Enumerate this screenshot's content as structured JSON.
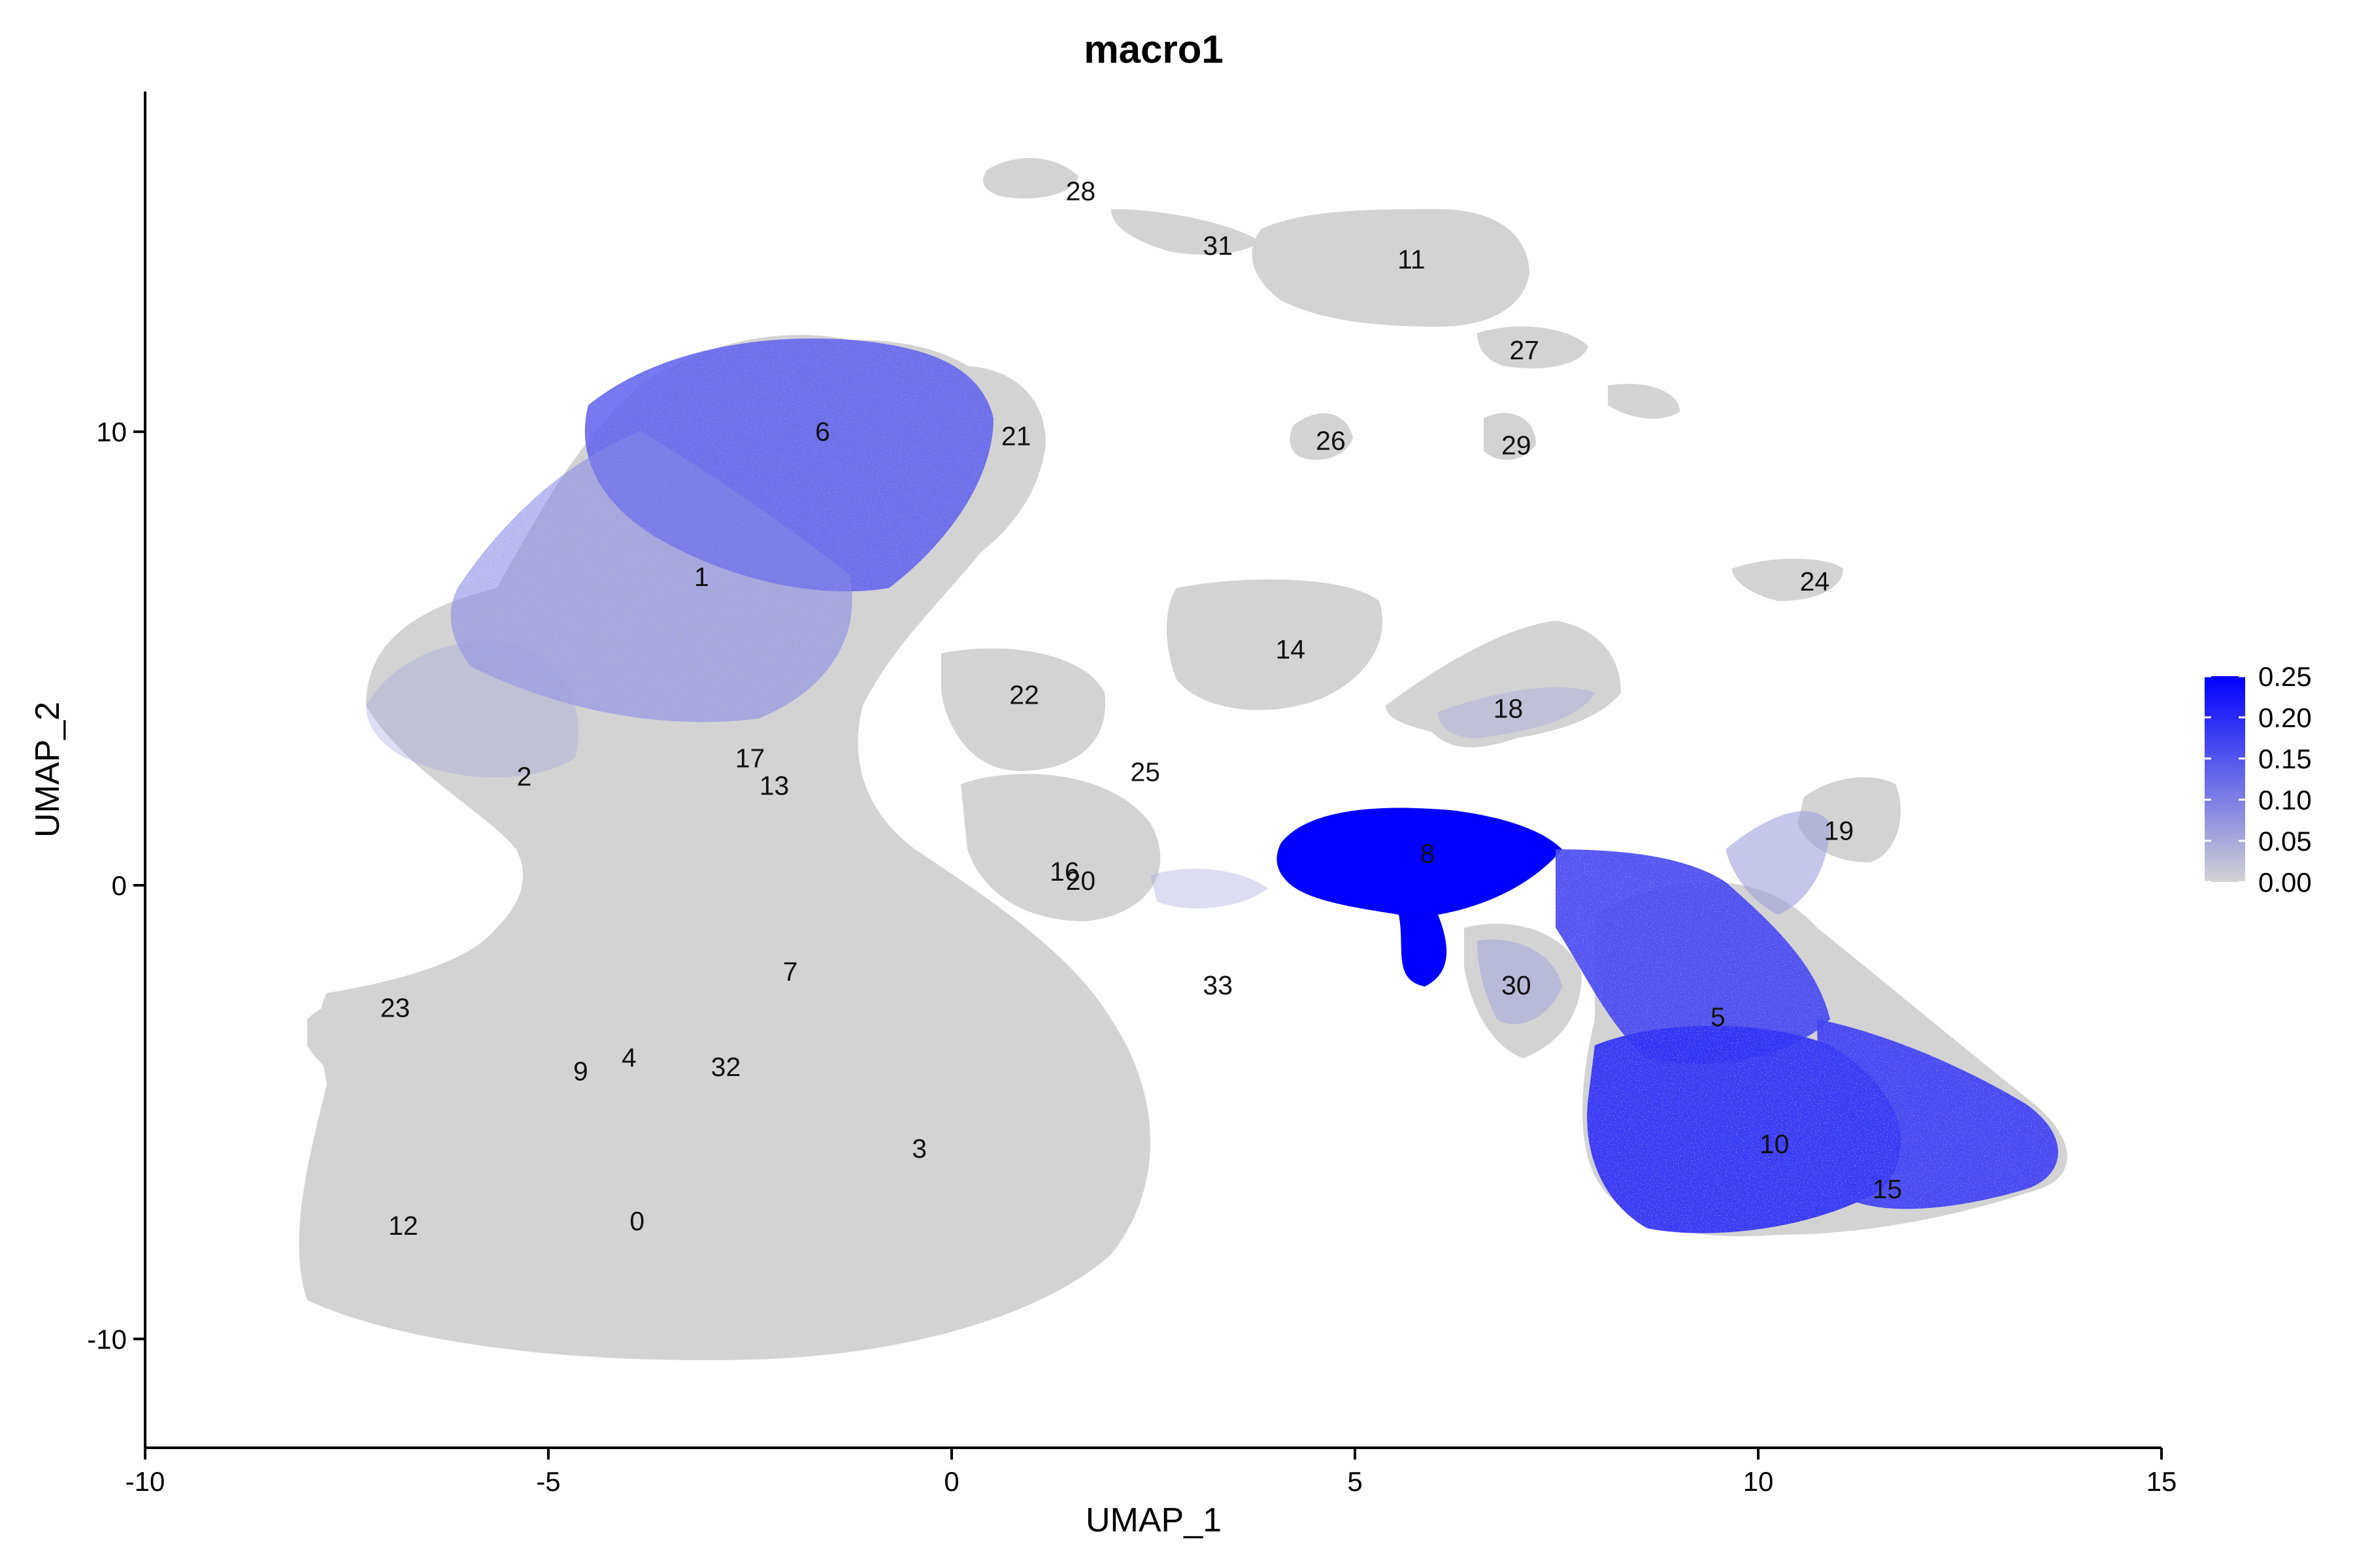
{
  "chart_data": {
    "type": "scatter",
    "title": "macro1",
    "xlabel": "UMAP_1",
    "ylabel": "UMAP_2",
    "xlim": [
      -10,
      15
    ],
    "ylim": [
      -12.4,
      17.5
    ],
    "x_ticks": [
      -10,
      -5,
      0,
      5,
      10,
      15
    ],
    "x_tick_labels": [
      "-10",
      "-5",
      "0",
      "5",
      "10",
      "15"
    ],
    "y_ticks": [
      -10,
      0,
      10
    ],
    "y_tick_labels": [
      "-10",
      "0",
      "10"
    ],
    "grid": false,
    "legend_placement": "right",
    "colors": {
      "low": "#d3d3d3",
      "high": "#0000ff"
    },
    "color_scale": {
      "min": 0,
      "max": 0.25,
      "breaks": [
        0,
        0.05,
        0.1,
        0.15,
        0.2,
        0.25
      ],
      "break_labels": [
        "0.00",
        "0.05",
        "0.10",
        "0.15",
        "0.20",
        "0.25"
      ]
    },
    "clusters": [
      {
        "label": "0",
        "x": -3.9,
        "y": -7.4,
        "expr": 0.02
      },
      {
        "label": "1",
        "x": -3.1,
        "y": 6.8,
        "expr": 0.09
      },
      {
        "label": "2",
        "x": -5.3,
        "y": 2.4,
        "expr": 0.06
      },
      {
        "label": "3",
        "x": -0.4,
        "y": -5.8,
        "expr": 0.02
      },
      {
        "label": "4",
        "x": -4.0,
        "y": -3.8,
        "expr": 0.02
      },
      {
        "label": "5",
        "x": 9.5,
        "y": -2.9,
        "expr": 0.17
      },
      {
        "label": "6",
        "x": -1.6,
        "y": 10.0,
        "expr": 0.14
      },
      {
        "label": "7",
        "x": -2.0,
        "y": -1.9,
        "expr": 0.03
      },
      {
        "label": "8",
        "x": 5.9,
        "y": 0.7,
        "expr": 0.26
      },
      {
        "label": "9",
        "x": -4.6,
        "y": -4.1,
        "expr": 0.02
      },
      {
        "label": "10",
        "x": 10.2,
        "y": -5.7,
        "expr": 0.19
      },
      {
        "label": "11",
        "x": 5.7,
        "y": 13.8,
        "expr": 0.02
      },
      {
        "label": "12",
        "x": -6.8,
        "y": -7.5,
        "expr": 0.01
      },
      {
        "label": "13",
        "x": -2.2,
        "y": 2.2,
        "expr": 0.04
      },
      {
        "label": "14",
        "x": 4.2,
        "y": 5.2,
        "expr": 0.01
      },
      {
        "label": "15",
        "x": 11.6,
        "y": -6.7,
        "expr": 0.18
      },
      {
        "label": "16",
        "x": 1.4,
        "y": 0.3,
        "expr": 0.02
      },
      {
        "label": "17",
        "x": -2.5,
        "y": 2.8,
        "expr": 0.04
      },
      {
        "label": "18",
        "x": 6.9,
        "y": 3.9,
        "expr": 0.05
      },
      {
        "label": "19",
        "x": 11.0,
        "y": 1.2,
        "expr": 0.06
      },
      {
        "label": "20",
        "x": 1.6,
        "y": 0.1,
        "expr": 0.02
      },
      {
        "label": "21",
        "x": 0.8,
        "y": 9.9,
        "expr": 0.02
      },
      {
        "label": "22",
        "x": 0.9,
        "y": 4.2,
        "expr": 0.03
      },
      {
        "label": "23",
        "x": -6.9,
        "y": -2.7,
        "expr": 0.01
      },
      {
        "label": "24",
        "x": 10.7,
        "y": 6.7,
        "expr": 0.05
      },
      {
        "label": "25",
        "x": 2.4,
        "y": 2.5,
        "expr": 0.04
      },
      {
        "label": "26",
        "x": 4.7,
        "y": 9.8,
        "expr": 0.01
      },
      {
        "label": "27",
        "x": 7.1,
        "y": 11.8,
        "expr": 0.01
      },
      {
        "label": "28",
        "x": 1.6,
        "y": 15.3,
        "expr": 0.01
      },
      {
        "label": "29",
        "x": 7.0,
        "y": 9.7,
        "expr": 0.01
      },
      {
        "label": "30",
        "x": 7.0,
        "y": -2.2,
        "expr": 0.06
      },
      {
        "label": "31",
        "x": 3.3,
        "y": 14.1,
        "expr": 0.01
      },
      {
        "label": "32",
        "x": -2.8,
        "y": -4.0,
        "expr": 0.02
      },
      {
        "label": "33",
        "x": 3.3,
        "y": -2.2,
        "expr": 0.05
      }
    ]
  }
}
